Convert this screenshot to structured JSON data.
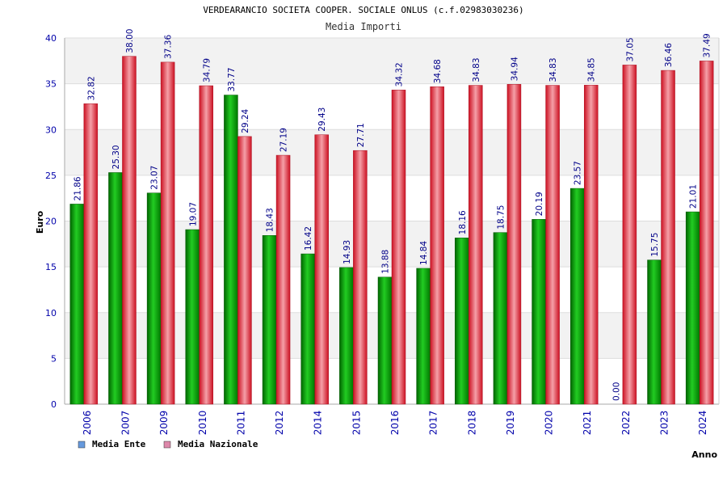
{
  "chart_data": {
    "type": "bar",
    "title": "VERDEARANCIO SOCIETA COOPER. SOCIALE ONLUS (c.f.02983030236)",
    "subtitle": "Media Importi",
    "xlabel": "Anno",
    "ylabel": "Euro",
    "ylim": [
      0,
      40
    ],
    "yticks": [
      0,
      5,
      10,
      15,
      20,
      25,
      30,
      35,
      40
    ],
    "grid": true,
    "legend_position": "bottom-left",
    "categories": [
      "2006",
      "2007",
      "2009",
      "2010",
      "2011",
      "2012",
      "2014",
      "2015",
      "2016",
      "2017",
      "2018",
      "2019",
      "2020",
      "2021",
      "2022",
      "2023",
      "2024"
    ],
    "series": [
      {
        "name": "Media Ente",
        "legend_color": "#6699dd",
        "bar_color": "#22aa22",
        "values": [
          21.86,
          25.3,
          23.07,
          19.07,
          33.77,
          18.43,
          16.42,
          14.93,
          13.88,
          14.84,
          18.16,
          18.75,
          20.19,
          23.57,
          0.0,
          15.75,
          21.01
        ],
        "labels": [
          "21.86",
          "25.30",
          "23.07",
          "19.07",
          "33.77",
          "18.43",
          "16.42",
          "14.93",
          "13.88",
          "14.84",
          "18.16",
          "18.75",
          "20.19",
          "23.57",
          "0.00",
          "15.75",
          "21.01"
        ]
      },
      {
        "name": "Media Nazionale",
        "legend_color": "#dd88aa",
        "bar_color": "#ee3344",
        "values": [
          32.82,
          38.0,
          37.36,
          34.79,
          29.24,
          27.19,
          29.43,
          27.71,
          34.32,
          34.68,
          34.83,
          34.94,
          34.83,
          34.85,
          37.05,
          36.46,
          37.49
        ],
        "labels": [
          "32.82",
          "38.00",
          "37.36",
          "34.79",
          "29.24",
          "27.19",
          "29.43",
          "27.71",
          "34.32",
          "34.68",
          "34.83",
          "34.94",
          "34.83",
          "34.85",
          "37.05",
          "36.46",
          "37.49"
        ]
      }
    ]
  }
}
